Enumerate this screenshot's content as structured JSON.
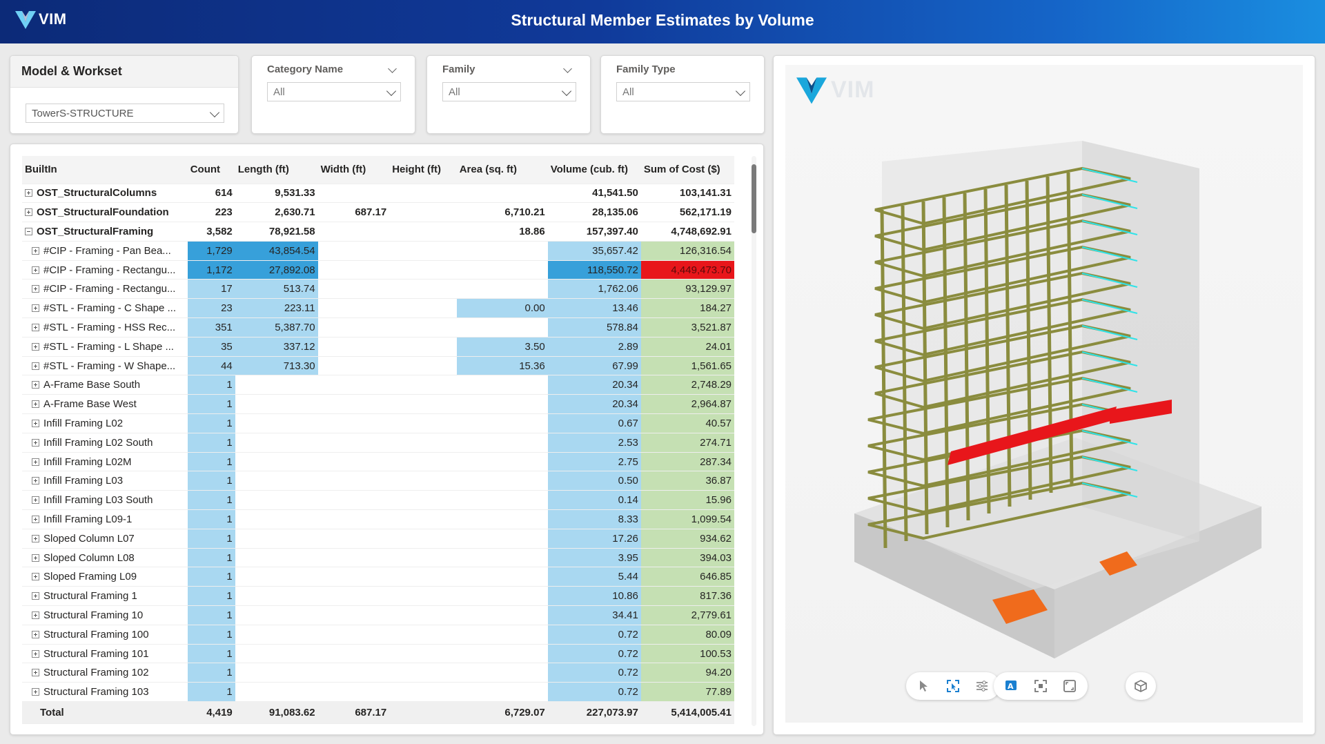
{
  "app": {
    "logo": "VIM",
    "title": "Structural Member Estimates by Volume"
  },
  "model_workset": {
    "label": "Model & Workset",
    "value": "TowerS-STRUCTURE"
  },
  "filters": [
    {
      "label": "Category Name",
      "value": "All"
    },
    {
      "label": "Family",
      "value": "All"
    },
    {
      "label": "Family Type",
      "value": "All"
    }
  ],
  "table": {
    "columns": [
      "BuiltIn",
      "Count",
      "Length (ft)",
      "Width (ft)",
      "Height (ft)",
      "Area (sq. ft)",
      "Volume (cub. ft)",
      "Sum of Cost ($)"
    ],
    "rows": [
      {
        "level": 0,
        "expanded": false,
        "name": "OST_StructuralColumns",
        "count": "614",
        "length": "9,531.33",
        "width": "",
        "height": "",
        "area": "",
        "volume": "41,541.50",
        "cost": "103,141.31"
      },
      {
        "level": 0,
        "expanded": false,
        "name": "OST_StructuralFoundation",
        "count": "223",
        "length": "2,630.71",
        "width": "687.17",
        "height": "",
        "area": "6,710.21",
        "volume": "28,135.06",
        "cost": "562,171.19"
      },
      {
        "level": 0,
        "expanded": true,
        "name": "OST_StructuralFraming",
        "count": "3,582",
        "length": "78,921.58",
        "width": "",
        "height": "",
        "area": "18.86",
        "volume": "157,397.40",
        "cost": "4,748,692.91"
      },
      {
        "level": 1,
        "name": "#CIP - Framing - Pan Bea...",
        "count": "1,729",
        "length": "43,854.54",
        "width": "",
        "height": "",
        "area": "",
        "volume": "35,657.42",
        "cost": "126,316.54"
      },
      {
        "level": 1,
        "name": "#CIP - Framing - Rectangu...",
        "count": "1,172",
        "length": "27,892.08",
        "width": "",
        "height": "",
        "area": "",
        "volume": "118,550.72",
        "cost": "4,449,473.70"
      },
      {
        "level": 1,
        "name": "#CIP - Framing - Rectangu...",
        "count": "17",
        "length": "513.74",
        "width": "",
        "height": "",
        "area": "",
        "volume": "1,762.06",
        "cost": "93,129.97"
      },
      {
        "level": 1,
        "name": "#STL - Framing - C Shape ...",
        "count": "23",
        "length": "223.11",
        "width": "",
        "height": "",
        "area": "0.00",
        "volume": "13.46",
        "cost": "184.27"
      },
      {
        "level": 1,
        "name": "#STL - Framing - HSS Rec...",
        "count": "351",
        "length": "5,387.70",
        "width": "",
        "height": "",
        "area": "",
        "volume": "578.84",
        "cost": "3,521.87"
      },
      {
        "level": 1,
        "name": "#STL - Framing - L Shape ...",
        "count": "35",
        "length": "337.12",
        "width": "",
        "height": "",
        "area": "3.50",
        "volume": "2.89",
        "cost": "24.01"
      },
      {
        "level": 1,
        "name": "#STL - Framing - W Shape...",
        "count": "44",
        "length": "713.30",
        "width": "",
        "height": "",
        "area": "15.36",
        "volume": "67.99",
        "cost": "1,561.65"
      },
      {
        "level": 1,
        "name": "A-Frame Base South",
        "count": "1",
        "length": "",
        "width": "",
        "height": "",
        "area": "",
        "volume": "20.34",
        "cost": "2,748.29"
      },
      {
        "level": 1,
        "name": "A-Frame Base West",
        "count": "1",
        "length": "",
        "width": "",
        "height": "",
        "area": "",
        "volume": "20.34",
        "cost": "2,964.87"
      },
      {
        "level": 1,
        "name": "Infill Framing L02",
        "count": "1",
        "length": "",
        "width": "",
        "height": "",
        "area": "",
        "volume": "0.67",
        "cost": "40.57"
      },
      {
        "level": 1,
        "name": "Infill Framing L02 South",
        "count": "1",
        "length": "",
        "width": "",
        "height": "",
        "area": "",
        "volume": "2.53",
        "cost": "274.71"
      },
      {
        "level": 1,
        "name": "Infill Framing L02M",
        "count": "1",
        "length": "",
        "width": "",
        "height": "",
        "area": "",
        "volume": "2.75",
        "cost": "287.34"
      },
      {
        "level": 1,
        "name": "Infill Framing L03",
        "count": "1",
        "length": "",
        "width": "",
        "height": "",
        "area": "",
        "volume": "0.50",
        "cost": "36.87"
      },
      {
        "level": 1,
        "name": "Infill Framing L03 South",
        "count": "1",
        "length": "",
        "width": "",
        "height": "",
        "area": "",
        "volume": "0.14",
        "cost": "15.96"
      },
      {
        "level": 1,
        "name": "Infill Framing L09-1",
        "count": "1",
        "length": "",
        "width": "",
        "height": "",
        "area": "",
        "volume": "8.33",
        "cost": "1,099.54"
      },
      {
        "level": 1,
        "name": "Sloped Column L07",
        "count": "1",
        "length": "",
        "width": "",
        "height": "",
        "area": "",
        "volume": "17.26",
        "cost": "934.62"
      },
      {
        "level": 1,
        "name": "Sloped Column L08",
        "count": "1",
        "length": "",
        "width": "",
        "height": "",
        "area": "",
        "volume": "3.95",
        "cost": "394.03"
      },
      {
        "level": 1,
        "name": "Sloped Framing L09",
        "count": "1",
        "length": "",
        "width": "",
        "height": "",
        "area": "",
        "volume": "5.44",
        "cost": "646.85"
      },
      {
        "level": 1,
        "name": "Structural Framing 1",
        "count": "1",
        "length": "",
        "width": "",
        "height": "",
        "area": "",
        "volume": "10.86",
        "cost": "817.36"
      },
      {
        "level": 1,
        "name": "Structural Framing 10",
        "count": "1",
        "length": "",
        "width": "",
        "height": "",
        "area": "",
        "volume": "34.41",
        "cost": "2,779.61"
      },
      {
        "level": 1,
        "name": "Structural Framing 100",
        "count": "1",
        "length": "",
        "width": "",
        "height": "",
        "area": "",
        "volume": "0.72",
        "cost": "80.09"
      },
      {
        "level": 1,
        "name": "Structural Framing 101",
        "count": "1",
        "length": "",
        "width": "",
        "height": "",
        "area": "",
        "volume": "0.72",
        "cost": "100.53"
      },
      {
        "level": 1,
        "name": "Structural Framing 102",
        "count": "1",
        "length": "",
        "width": "",
        "height": "",
        "area": "",
        "volume": "0.72",
        "cost": "94.20"
      },
      {
        "level": 1,
        "name": "Structural Framing 103",
        "count": "1",
        "length": "",
        "width": "",
        "height": "",
        "area": "",
        "volume": "0.72",
        "cost": "77.89"
      }
    ],
    "total": {
      "name": "Total",
      "count": "4,419",
      "length": "91,083.62",
      "width": "687.17",
      "height": "",
      "area": "6,729.07",
      "volume": "227,073.97",
      "cost": "5,414,005.41"
    }
  },
  "colors": {
    "header_blue_dark": "#0c2a78",
    "header_blue_light": "#1a8ee0",
    "cell_blue_light": "#a9d8f1",
    "cell_blue_dark": "#37a0da",
    "cell_green": "#c5e0b3",
    "cell_red": "#e8161b",
    "steel_green": "#8a8c3e",
    "edge_cyan": "#2ee3e8",
    "highlight_red": "#e8161b",
    "highlight_orange": "#f06b1c"
  },
  "viewer": {
    "logo": "VIM",
    "toolbar_left": [
      "cursor-icon",
      "select-area-icon",
      "sliders-icon"
    ],
    "toolbar_middle": [
      "measure-icon",
      "frame-object-icon",
      "fullscreen-icon"
    ],
    "toolbar_right": [
      "cube-icon"
    ]
  }
}
